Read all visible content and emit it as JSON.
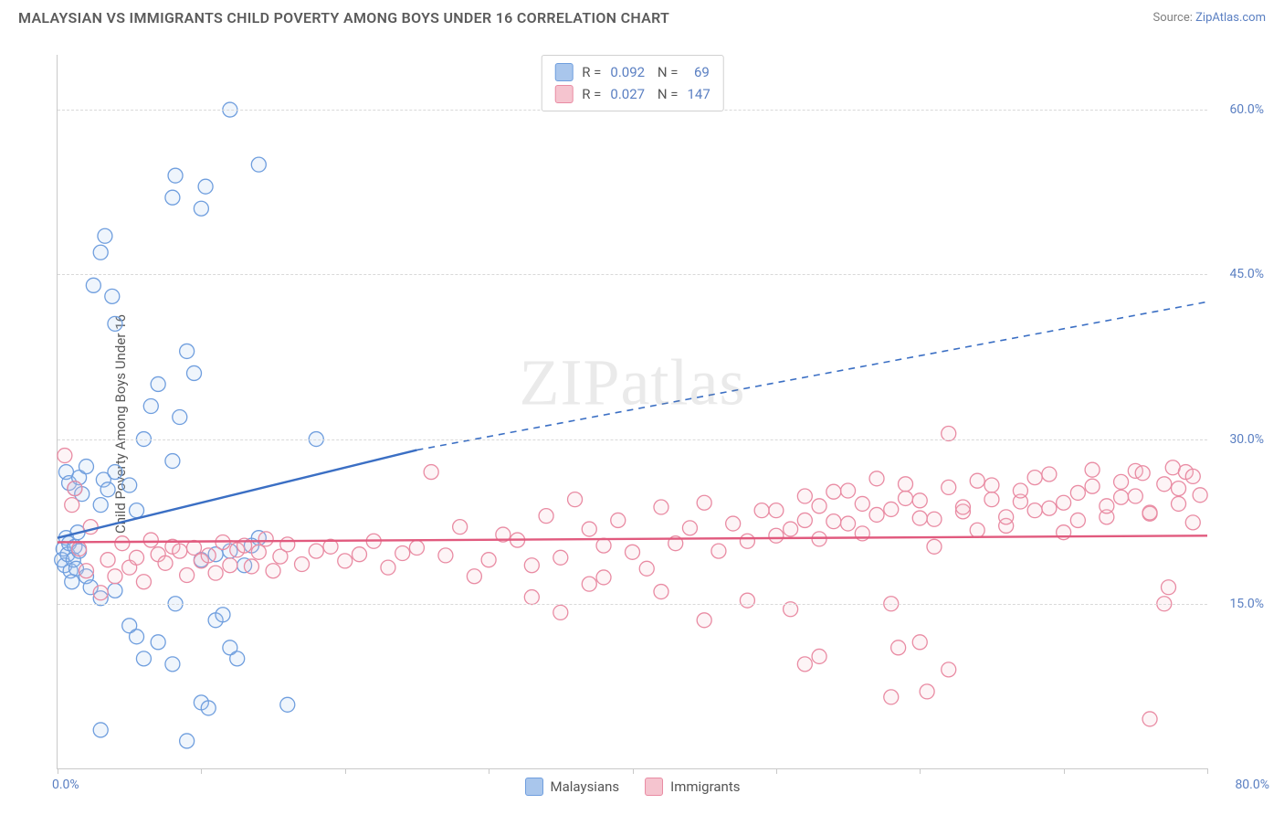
{
  "header": {
    "title": "MALAYSIAN VS IMMIGRANTS CHILD POVERTY AMONG BOYS UNDER 16 CORRELATION CHART",
    "source_prefix": "Source: ",
    "source_name": "ZipAtlas.com"
  },
  "watermark": {
    "bold": "ZIP",
    "thin": "atlas"
  },
  "chart": {
    "type": "scatter",
    "ylabel": "Child Poverty Among Boys Under 16",
    "background_color": "#ffffff",
    "grid_color": "#d9d9d9",
    "axis_color": "#c9c9c9",
    "tick_label_color": "#5a7fc2",
    "tick_fontsize": 14,
    "label_fontsize": 15,
    "title_fontsize": 16,
    "xlim": [
      0,
      80
    ],
    "ylim": [
      0,
      65
    ],
    "x_origin_label": "0.0%",
    "x_max_label": "80.0%",
    "y_ticks": [
      {
        "value": 15,
        "label": "15.0%"
      },
      {
        "value": 30,
        "label": "30.0%"
      },
      {
        "value": 45,
        "label": "45.0%"
      },
      {
        "value": 60,
        "label": "60.0%"
      }
    ],
    "x_tick_positions": [
      0,
      10,
      20,
      30,
      40,
      50,
      60,
      70,
      80
    ],
    "marker_radius": 8,
    "marker_stroke_width": 1.3,
    "marker_fill_opacity": 0.18,
    "series": [
      {
        "name": "Malaysians",
        "color_fill": "#a9c6ec",
        "color_stroke": "#6f9ede",
        "line_color": "#3b6fc4",
        "R": "0.092",
        "N": "69",
        "regression": {
          "x1": 0,
          "y1": 21,
          "x2_solid": 25,
          "y2_solid": 29,
          "x2_dash": 80,
          "y2_dash": 42.5
        },
        "points": [
          [
            0.3,
            19
          ],
          [
            0.4,
            20
          ],
          [
            0.5,
            18.5
          ],
          [
            0.6,
            21
          ],
          [
            0.7,
            19.5
          ],
          [
            0.8,
            20.5
          ],
          [
            0.9,
            18
          ],
          [
            1,
            17
          ],
          [
            1.1,
            19
          ],
          [
            1.2,
            20.2
          ],
          [
            1.3,
            18.2
          ],
          [
            1.4,
            21.5
          ],
          [
            1.5,
            19.8
          ],
          [
            0.6,
            27
          ],
          [
            0.8,
            26
          ],
          [
            1.2,
            25.5
          ],
          [
            1.5,
            26.5
          ],
          [
            1.7,
            25
          ],
          [
            2,
            27.5
          ],
          [
            3,
            24
          ],
          [
            3.2,
            26.3
          ],
          [
            3.5,
            25.4
          ],
          [
            4,
            27
          ],
          [
            5,
            25.8
          ],
          [
            5.5,
            23.5
          ],
          [
            6,
            30
          ],
          [
            6.5,
            33
          ],
          [
            7,
            35
          ],
          [
            8,
            28
          ],
          [
            8.5,
            32
          ],
          [
            9,
            38
          ],
          [
            9.5,
            36
          ],
          [
            2.5,
            44
          ],
          [
            3,
            47
          ],
          [
            3.3,
            48.5
          ],
          [
            3.8,
            43
          ],
          [
            4,
            40.5
          ],
          [
            8,
            52
          ],
          [
            8.2,
            54
          ],
          [
            10,
            51
          ],
          [
            10.3,
            53
          ],
          [
            12,
            60
          ],
          [
            14,
            55
          ],
          [
            2,
            17.5
          ],
          [
            2.3,
            16.5
          ],
          [
            3,
            15.5
          ],
          [
            4,
            16.2
          ],
          [
            5,
            13
          ],
          [
            5.5,
            12
          ],
          [
            6,
            10
          ],
          [
            7,
            11.5
          ],
          [
            8,
            9.5
          ],
          [
            8.2,
            15
          ],
          [
            10,
            6
          ],
          [
            10.5,
            5.5
          ],
          [
            11,
            13.5
          ],
          [
            11.5,
            14
          ],
          [
            12,
            11
          ],
          [
            12.5,
            10
          ],
          [
            3,
            3.5
          ],
          [
            9,
            2.5
          ],
          [
            16,
            5.8
          ],
          [
            10,
            19
          ],
          [
            11,
            19.5
          ],
          [
            13,
            18.5
          ],
          [
            14,
            21
          ],
          [
            18,
            30
          ],
          [
            12,
            19.8
          ],
          [
            13.5,
            20.3
          ]
        ]
      },
      {
        "name": "Immigrants",
        "color_fill": "#f5c4cf",
        "color_stroke": "#e98ba3",
        "line_color": "#e15a7e",
        "R": "0.027",
        "N": "147",
        "regression": {
          "x1": 0,
          "y1": 20.6,
          "x2_solid": 80,
          "y2_solid": 21.2,
          "x2_dash": 80,
          "y2_dash": 21.2
        },
        "points": [
          [
            0.5,
            28.5
          ],
          [
            1,
            24
          ],
          [
            1.2,
            25.5
          ],
          [
            1.5,
            20
          ],
          [
            2,
            18
          ],
          [
            2.3,
            22
          ],
          [
            3,
            16
          ],
          [
            3.5,
            19
          ],
          [
            4,
            17.5
          ],
          [
            4.5,
            20.5
          ],
          [
            5,
            18.3
          ],
          [
            5.5,
            19.2
          ],
          [
            6,
            17
          ],
          [
            6.5,
            20.8
          ],
          [
            7,
            19.5
          ],
          [
            7.5,
            18.7
          ],
          [
            8,
            20.2
          ],
          [
            8.5,
            19.8
          ],
          [
            9,
            17.6
          ],
          [
            9.5,
            20.1
          ],
          [
            10,
            18.9
          ],
          [
            10.5,
            19.4
          ],
          [
            11,
            17.8
          ],
          [
            11.5,
            20.6
          ],
          [
            12,
            18.5
          ],
          [
            12.5,
            19.9
          ],
          [
            13,
            20.3
          ],
          [
            13.5,
            18.4
          ],
          [
            14,
            19.7
          ],
          [
            14.5,
            20.9
          ],
          [
            15,
            18
          ],
          [
            15.5,
            19.3
          ],
          [
            16,
            20.4
          ],
          [
            17,
            18.6
          ],
          [
            18,
            19.8
          ],
          [
            19,
            20.2
          ],
          [
            20,
            18.9
          ],
          [
            21,
            19.5
          ],
          [
            22,
            20.7
          ],
          [
            23,
            18.3
          ],
          [
            24,
            19.6
          ],
          [
            25,
            20.1
          ],
          [
            26,
            27
          ],
          [
            27,
            19.4
          ],
          [
            28,
            22
          ],
          [
            29,
            17.5
          ],
          [
            30,
            19
          ],
          [
            31,
            21.3
          ],
          [
            32,
            20.8
          ],
          [
            33,
            18.5
          ],
          [
            34,
            23
          ],
          [
            35,
            19.2
          ],
          [
            36,
            24.5
          ],
          [
            37,
            21.8
          ],
          [
            38,
            20.3
          ],
          [
            39,
            22.6
          ],
          [
            40,
            19.7
          ],
          [
            41,
            18.2
          ],
          [
            42,
            23.8
          ],
          [
            43,
            20.5
          ],
          [
            44,
            21.9
          ],
          [
            45,
            24.2
          ],
          [
            46,
            19.8
          ],
          [
            47,
            22.3
          ],
          [
            48,
            20.7
          ],
          [
            49,
            23.5
          ],
          [
            50,
            21.2
          ],
          [
            51,
            14.5
          ],
          [
            52,
            24.8
          ],
          [
            53,
            20.9
          ],
          [
            54,
            22.5
          ],
          [
            55,
            25.3
          ],
          [
            56,
            21.4
          ],
          [
            57,
            23.1
          ],
          [
            58,
            15
          ],
          [
            58.5,
            11
          ],
          [
            59,
            24.6
          ],
          [
            60,
            22.8
          ],
          [
            61,
            20.2
          ],
          [
            62,
            30.5
          ],
          [
            63,
            23.4
          ],
          [
            64,
            21.7
          ],
          [
            65,
            25.8
          ],
          [
            66,
            22.1
          ],
          [
            67,
            24.3
          ],
          [
            68,
            26.5
          ],
          [
            69,
            23.7
          ],
          [
            70,
            21.5
          ],
          [
            71,
            25.1
          ],
          [
            72,
            27.2
          ],
          [
            73,
            22.9
          ],
          [
            74,
            24.7
          ],
          [
            75,
            27.1
          ],
          [
            75.5,
            26.9
          ],
          [
            76,
            23.2
          ],
          [
            77,
            15
          ],
          [
            77.3,
            16.5
          ],
          [
            77.6,
            27.4
          ],
          [
            78,
            25.5
          ],
          [
            78.5,
            27
          ],
          [
            79,
            22.4
          ],
          [
            79.5,
            24.9
          ],
          [
            52,
            9.5
          ],
          [
            53,
            10.2
          ],
          [
            60,
            11.5
          ],
          [
            60.5,
            7
          ],
          [
            62,
            9
          ],
          [
            58,
            6.5
          ],
          [
            76,
            4.5
          ],
          [
            50,
            23.5
          ],
          [
            51,
            21.8
          ],
          [
            52,
            22.6
          ],
          [
            53,
            23.9
          ],
          [
            54,
            25.2
          ],
          [
            55,
            22.3
          ],
          [
            56,
            24.1
          ],
          [
            57,
            26.4
          ],
          [
            58,
            23.6
          ],
          [
            59,
            25.9
          ],
          [
            60,
            24.4
          ],
          [
            61,
            22.7
          ],
          [
            62,
            25.6
          ],
          [
            63,
            23.8
          ],
          [
            64,
            26.2
          ],
          [
            65,
            24.5
          ],
          [
            66,
            22.9
          ],
          [
            67,
            25.3
          ],
          [
            68,
            23.5
          ],
          [
            69,
            26.8
          ],
          [
            70,
            24.2
          ],
          [
            71,
            22.6
          ],
          [
            72,
            25.7
          ],
          [
            73,
            23.9
          ],
          [
            74,
            26.1
          ],
          [
            75,
            24.8
          ],
          [
            76,
            23.3
          ],
          [
            77,
            25.9
          ],
          [
            78,
            24.1
          ],
          [
            79,
            26.6
          ],
          [
            33,
            15.6
          ],
          [
            35,
            14.2
          ],
          [
            37,
            16.8
          ],
          [
            45,
            13.5
          ],
          [
            48,
            15.3
          ],
          [
            38,
            17.4
          ],
          [
            42,
            16.1
          ]
        ]
      }
    ],
    "bottom_legend": [
      {
        "label": "Malaysians",
        "fill": "#a9c6ec",
        "stroke": "#6f9ede"
      },
      {
        "label": "Immigrants",
        "fill": "#f5c4cf",
        "stroke": "#e98ba3"
      }
    ]
  }
}
